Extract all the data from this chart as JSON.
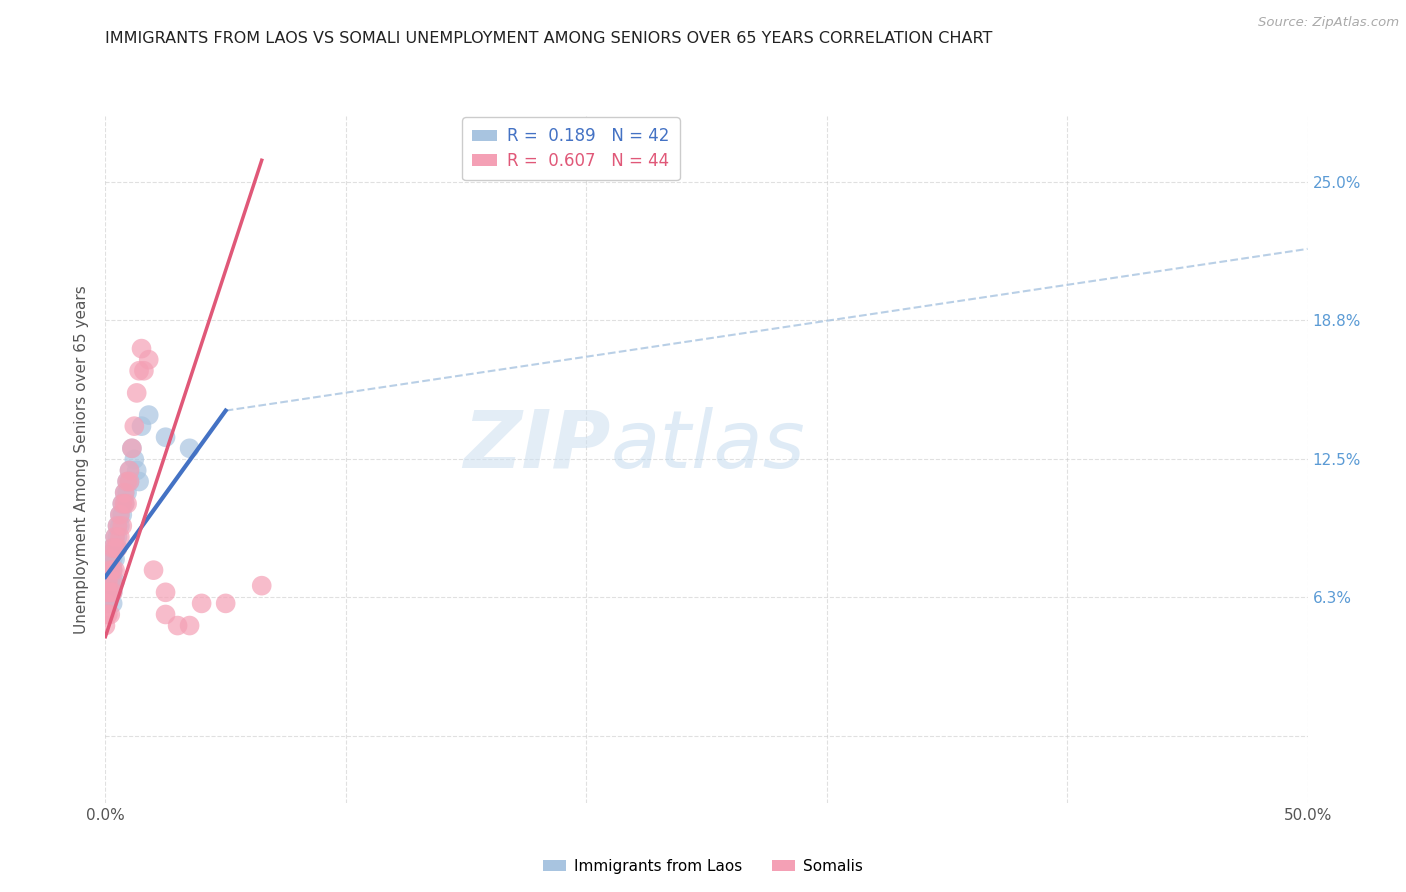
{
  "title": "IMMIGRANTS FROM LAOS VS SOMALI UNEMPLOYMENT AMONG SENIORS OVER 65 YEARS CORRELATION CHART",
  "source": "Source: ZipAtlas.com",
  "ylabel": "Unemployment Among Seniors over 65 years",
  "xlim": [
    0.0,
    0.5
  ],
  "ylim": [
    -0.03,
    0.28
  ],
  "color_laos": "#a8c4e0",
  "color_somali": "#f4a0b5",
  "color_laos_line": "#4472c4",
  "color_somali_line": "#e05878",
  "color_dashed": "#a8c4e0",
  "watermark": "ZIPatlas",
  "laos_x": [
    0.0,
    0.0,
    0.0,
    0.001,
    0.001,
    0.001,
    0.001,
    0.002,
    0.002,
    0.002,
    0.002,
    0.003,
    0.003,
    0.003,
    0.003,
    0.003,
    0.003,
    0.004,
    0.004,
    0.004,
    0.004,
    0.005,
    0.005,
    0.005,
    0.006,
    0.006,
    0.007,
    0.007,
    0.008,
    0.008,
    0.009,
    0.009,
    0.01,
    0.01,
    0.011,
    0.012,
    0.013,
    0.014,
    0.015,
    0.018,
    0.025,
    0.035
  ],
  "laos_y": [
    0.07,
    0.065,
    0.06,
    0.075,
    0.07,
    0.065,
    0.06,
    0.08,
    0.075,
    0.07,
    0.065,
    0.085,
    0.08,
    0.075,
    0.07,
    0.065,
    0.06,
    0.09,
    0.085,
    0.08,
    0.07,
    0.095,
    0.09,
    0.085,
    0.1,
    0.095,
    0.105,
    0.1,
    0.11,
    0.105,
    0.115,
    0.11,
    0.12,
    0.115,
    0.13,
    0.125,
    0.12,
    0.115,
    0.14,
    0.145,
    0.135,
    0.13
  ],
  "somali_x": [
    0.0,
    0.0,
    0.0,
    0.001,
    0.001,
    0.001,
    0.002,
    0.002,
    0.002,
    0.002,
    0.003,
    0.003,
    0.003,
    0.003,
    0.004,
    0.004,
    0.004,
    0.005,
    0.005,
    0.006,
    0.006,
    0.007,
    0.007,
    0.008,
    0.008,
    0.009,
    0.009,
    0.01,
    0.01,
    0.011,
    0.012,
    0.013,
    0.014,
    0.015,
    0.016,
    0.018,
    0.02,
    0.025,
    0.025,
    0.03,
    0.035,
    0.04,
    0.05,
    0.065
  ],
  "somali_y": [
    0.06,
    0.055,
    0.05,
    0.07,
    0.065,
    0.055,
    0.08,
    0.075,
    0.065,
    0.055,
    0.085,
    0.075,
    0.07,
    0.065,
    0.09,
    0.085,
    0.075,
    0.095,
    0.085,
    0.1,
    0.09,
    0.105,
    0.095,
    0.11,
    0.105,
    0.115,
    0.105,
    0.12,
    0.115,
    0.13,
    0.14,
    0.155,
    0.165,
    0.175,
    0.165,
    0.17,
    0.075,
    0.065,
    0.055,
    0.05,
    0.05,
    0.06,
    0.06,
    0.068
  ],
  "laos_line_x": [
    0.0,
    0.05
  ],
  "laos_line_y": [
    0.072,
    0.147
  ],
  "somali_line_x": [
    0.0,
    0.065
  ],
  "somali_line_y": [
    0.045,
    0.26
  ],
  "dashed_line_x": [
    0.05,
    0.5
  ],
  "dashed_line_y": [
    0.147,
    0.22
  ]
}
